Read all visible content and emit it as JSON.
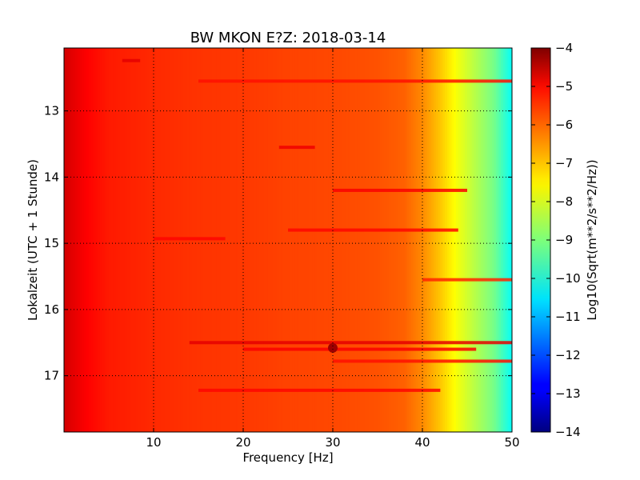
{
  "chart_data": {
    "type": "heatmap",
    "title": "BW MKON E?Z: 2018-03-14",
    "xlabel": "Frequency [Hz]",
    "ylabel": "Lokalzeit (UTC + 1 Stunde)",
    "colorbar_label": "Log10(Sqrt(m**2/s**2/Hz))",
    "colormap": "jet",
    "xlim": [
      0,
      50
    ],
    "ylim": [
      12.05,
      17.85
    ],
    "y_inverted": true,
    "clim": [
      -14,
      -4
    ],
    "grid": true,
    "x_ticks": [
      10,
      20,
      30,
      40,
      50
    ],
    "y_ticks": [
      13,
      14,
      15,
      16,
      17
    ],
    "colorbar_ticks": [
      -4,
      -5,
      -6,
      -7,
      -8,
      -9,
      -10,
      -11,
      -12,
      -13,
      -14
    ],
    "spectrum_profile": {
      "frequencies": [
        0,
        1,
        3,
        5,
        10,
        15,
        20,
        25,
        30,
        35,
        38,
        40,
        42,
        44,
        46,
        48,
        50
      ],
      "log_amplitude": [
        -4.8,
        -5.0,
        -5.3,
        -5.5,
        -5.65,
        -5.75,
        -5.8,
        -5.9,
        -5.95,
        -6.05,
        -6.2,
        -6.6,
        -7.2,
        -7.9,
        -8.5,
        -9.1,
        -10.2
      ]
    },
    "bands": [
      {
        "time": 12.24,
        "f_start": 6.5,
        "f_end": 8.5,
        "log_amplitude": -5.0
      },
      {
        "time": 12.55,
        "f_start": 15,
        "f_end": 50,
        "log_amplitude": -5.4
      },
      {
        "time": 13.55,
        "f_start": 24,
        "f_end": 28,
        "log_amplitude": -5.1
      },
      {
        "time": 14.2,
        "f_start": 30,
        "f_end": 45,
        "log_amplitude": -5.2
      },
      {
        "time": 14.8,
        "f_start": 25,
        "f_end": 44,
        "log_amplitude": -5.3
      },
      {
        "time": 14.93,
        "f_start": 10,
        "f_end": 18,
        "log_amplitude": -5.3
      },
      {
        "time": 15.55,
        "f_start": 40,
        "f_end": 50,
        "log_amplitude": -5.6
      },
      {
        "time": 16.5,
        "f_start": 14,
        "f_end": 50,
        "log_amplitude": -5.0
      },
      {
        "time": 16.6,
        "f_start": 20,
        "f_end": 46,
        "log_amplitude": -5.2
      },
      {
        "time": 16.78,
        "f_start": 30,
        "f_end": 50,
        "log_amplitude": -5.4
      },
      {
        "time": 17.22,
        "f_start": 15,
        "f_end": 42,
        "log_amplitude": -5.3
      }
    ],
    "hotspots": [
      {
        "time": 16.58,
        "frequency": 30,
        "log_amplitude": -4.3
      }
    ]
  }
}
